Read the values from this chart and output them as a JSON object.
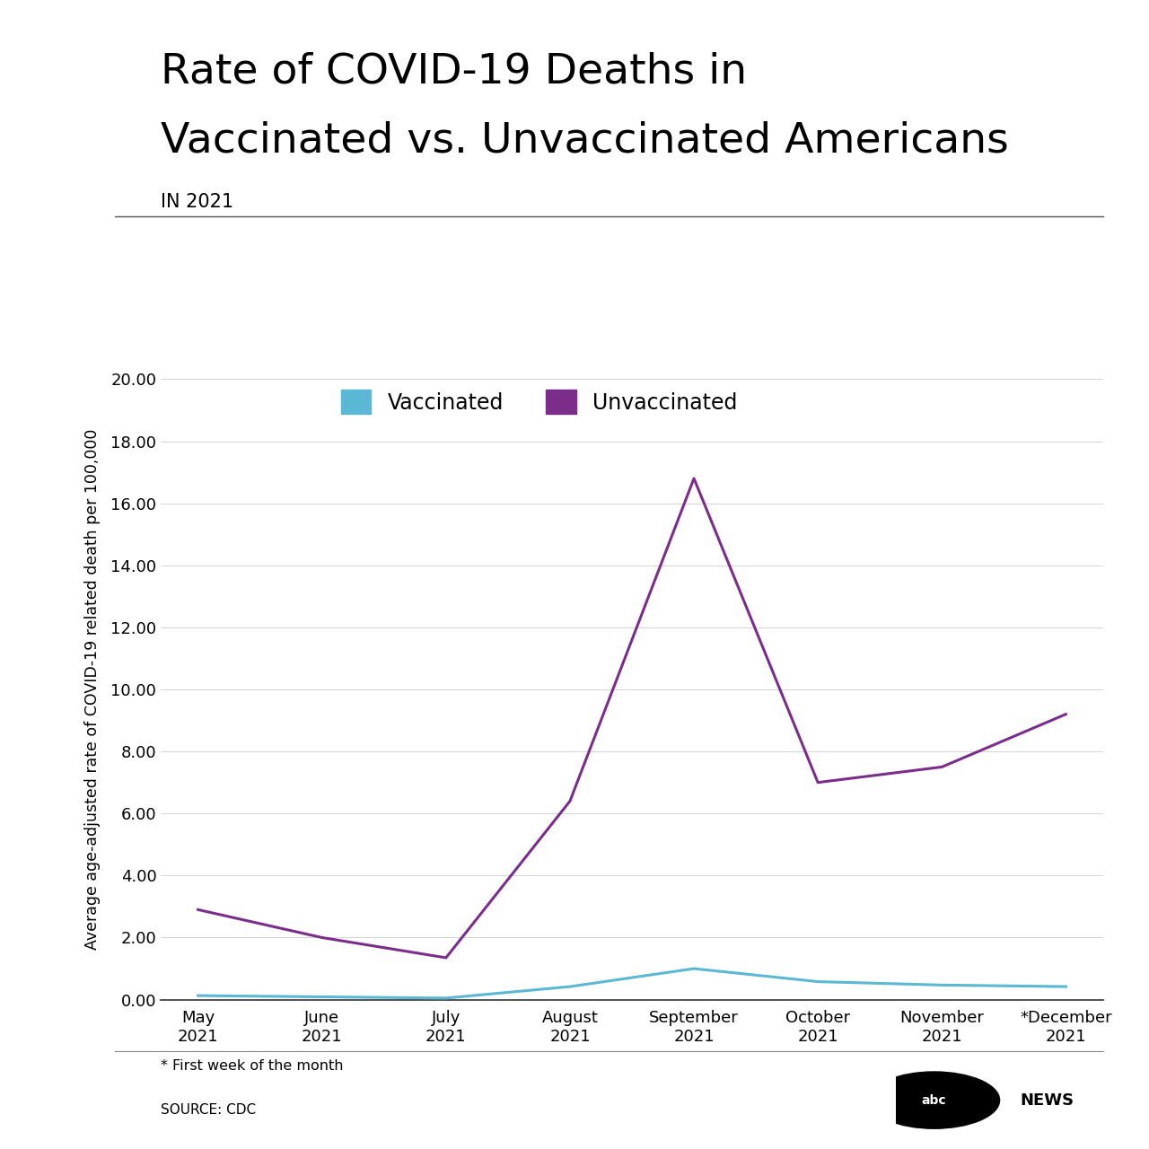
{
  "title_line1": "Rate of COVID-19 Deaths in",
  "title_line2": "Vaccinated vs. Unvaccinated Americans",
  "subtitle": "IN 2021",
  "xlabel_months": [
    "May\n2021",
    "June\n2021",
    "July\n2021",
    "August\n2021",
    "September\n2021",
    "October\n2021",
    "November\n2021",
    "*December\n2021"
  ],
  "vaccinated_values": [
    0.13,
    0.09,
    0.05,
    0.42,
    1.0,
    0.58,
    0.47,
    0.42
  ],
  "unvaccinated_values": [
    2.9,
    2.0,
    1.35,
    6.4,
    16.8,
    7.0,
    7.5,
    9.2
  ],
  "ylim": [
    0,
    20.0
  ],
  "yticks": [
    0.0,
    2.0,
    4.0,
    6.0,
    8.0,
    10.0,
    12.0,
    14.0,
    16.0,
    18.0,
    20.0
  ],
  "vaccinated_color": "#5BB8D4",
  "unvaccinated_color": "#7B2D8B",
  "ylabel": "Average age-adjusted rate of COVID-19 related death per 100,000",
  "footnote": "* First week of the month",
  "source": "SOURCE: CDC",
  "background_color": "#FFFFFF",
  "line_width": 2.2,
  "title_fontsize": 34,
  "subtitle_fontsize": 15,
  "legend_fontsize": 17,
  "axis_fontsize": 13,
  "ylabel_fontsize": 12.5
}
